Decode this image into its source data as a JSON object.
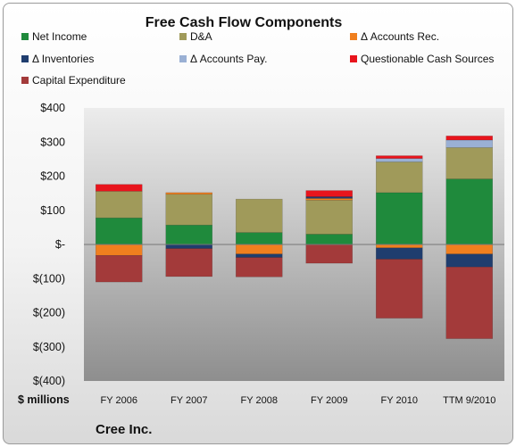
{
  "chart_data": {
    "type": "bar",
    "stacked": true,
    "title": "Free Cash Flow Components",
    "unit_label": "$ millions",
    "company": "Cree Inc.",
    "categories": [
      "FY 2006",
      "FY 2007",
      "FY 2008",
      "FY 2009",
      "FY 2010",
      "TTM 9/2010"
    ],
    "ylim": [
      -400,
      400
    ],
    "yticks": [
      400,
      300,
      200,
      100,
      0,
      -100,
      -200,
      -300,
      -400
    ],
    "ytick_labels": [
      "$400",
      "$300",
      "$200",
      "$100",
      "$-",
      "$(100)",
      "$(200)",
      "$(300)",
      "$(400)"
    ],
    "grid": false,
    "legend_position": "top",
    "series": [
      {
        "name": "Net Income",
        "color": "#1f8a3c",
        "values": [
          78,
          57,
          35,
          30,
          152,
          192
        ]
      },
      {
        "name": "D&A",
        "color": "#a09a5a",
        "values": [
          78,
          90,
          98,
          100,
          90,
          92
        ]
      },
      {
        "name": "Δ Accounts Rec.",
        "color": "#f07f1e",
        "values": [
          -32,
          5,
          -28,
          5,
          -10,
          -28
        ]
      },
      {
        "name": "Δ Inventories",
        "color": "#1f3d6e",
        "values": [
          0,
          -12,
          -10,
          5,
          -33,
          -38
        ]
      },
      {
        "name": "Δ Accounts Pay.",
        "color": "#9ab0d4",
        "values": [
          0,
          0,
          0,
          0,
          10,
          22
        ]
      },
      {
        "name": "Questionable Cash Sources",
        "color": "#e8141c",
        "values": [
          20,
          0,
          0,
          18,
          8,
          12
        ]
      },
      {
        "name": "Capital Expenditure",
        "color": "#a33a3a",
        "values": [
          -78,
          -82,
          -57,
          -55,
          -173,
          -210
        ]
      }
    ]
  }
}
